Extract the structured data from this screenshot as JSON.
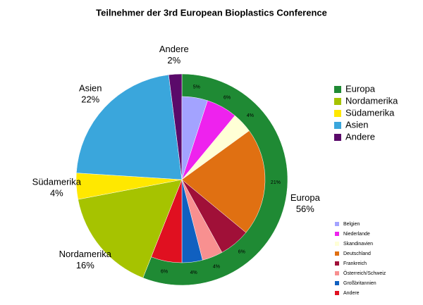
{
  "chart_data": {
    "type": "pie",
    "title": "Teilnehmer der 3rd European Bioplastics Conference",
    "categories": [
      "Europa",
      "Nordamerika",
      "Südamerika",
      "Asien",
      "Andere"
    ],
    "values": [
      56,
      16,
      4,
      22,
      2
    ],
    "value_labels": [
      "56%",
      "16%",
      "4%",
      "22%",
      "2%"
    ],
    "colors": [
      "#1f8a34",
      "#a6c300",
      "#ffe800",
      "#3aa6dc",
      "#5a0a6a"
    ],
    "legend": "right",
    "breakdown": {
      "categories": [
        "Belgien",
        "Niederlande",
        "Skandinavien",
        "Deutschland",
        "Frankreich",
        "Österreich/Schweiz",
        "Großbritannien",
        "Andere"
      ],
      "values": [
        5,
        6,
        4,
        21,
        6,
        4,
        4,
        6
      ],
      "value_labels": [
        "5%",
        "6%",
        "4%",
        "21%",
        "6%",
        "4%",
        "4%",
        "6%"
      ],
      "colors": [
        "#a3a3ff",
        "#ee22ee",
        "#ffffd6",
        "#e07012",
        "#a01038",
        "#f89090",
        "#1060c0",
        "#e01020"
      ]
    }
  }
}
